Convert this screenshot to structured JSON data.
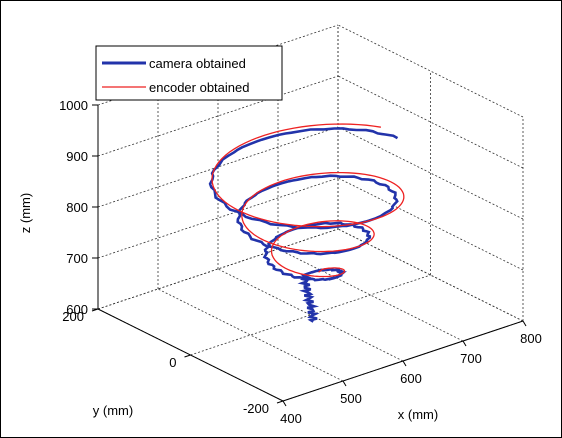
{
  "chart_data": {
    "type": "line",
    "subtype": "3d-line",
    "title": "",
    "xlabel": "x (mm)",
    "ylabel": "y (mm)",
    "zlabel": "z (mm)",
    "xlim": [
      400,
      800
    ],
    "ylim": [
      -200,
      200
    ],
    "zlim": [
      600,
      1000
    ],
    "xticks": [
      "400",
      "500",
      "600",
      "700",
      "800"
    ],
    "yticks": [
      "-200",
      "0",
      "200"
    ],
    "zticks": [
      "600",
      "700",
      "800",
      "900",
      "1000"
    ],
    "grid": true,
    "legend_position": "top-left",
    "series": [
      {
        "name": "camera obtained",
        "color": "#2233aa",
        "description": "spiral trajectory, descending helix of shrinking radius",
        "helix": {
          "cx": 600,
          "cy": 0,
          "z_top": 890,
          "z_bottom": 660,
          "r_top": 145,
          "r_bottom": 30,
          "turns": 3.2,
          "tail_z": 600
        }
      },
      {
        "name": "encoder obtained",
        "color": "#ee2222",
        "description": "spiral trajectory closely following camera series",
        "helix": {
          "cx": 612,
          "cy": 5,
          "z_top": 885,
          "z_bottom": 665,
          "r_top": 150,
          "r_bottom": 30,
          "turns": 3.05,
          "tail_z": 690
        }
      }
    ]
  }
}
